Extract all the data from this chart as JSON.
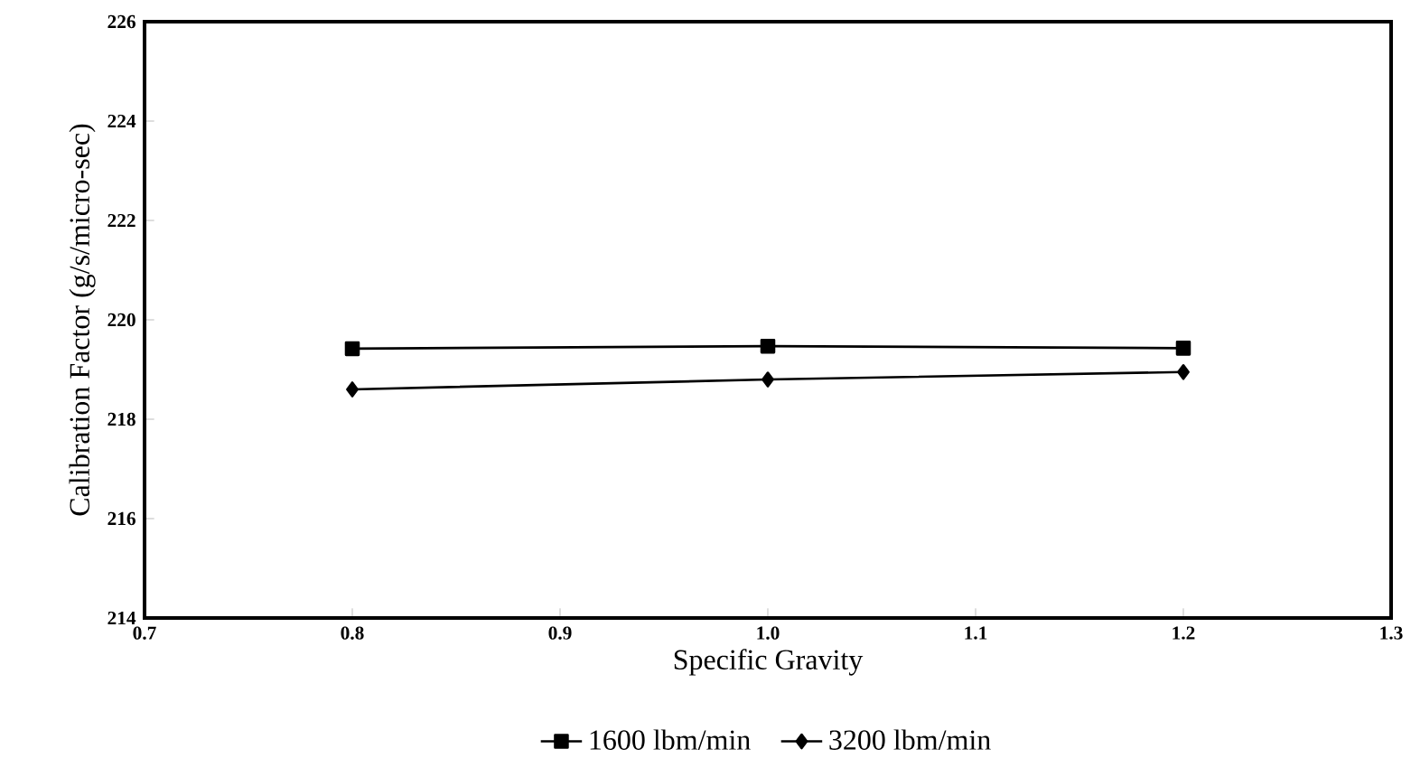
{
  "chart_data": {
    "type": "line",
    "xlabel": "Specific Gravity",
    "ylabel": "Calibration Factor (g/s/micro-sec)",
    "xlim": [
      0.7,
      1.3
    ],
    "ylim": [
      214,
      226
    ],
    "xticks": [
      {
        "value": 0.7,
        "label": "0.7"
      },
      {
        "value": 0.8,
        "label": "0.8"
      },
      {
        "value": 0.9,
        "label": "0.9"
      },
      {
        "value": 1.0,
        "label": "1.0"
      },
      {
        "value": 1.1,
        "label": "1.1"
      },
      {
        "value": 1.2,
        "label": "1.2"
      },
      {
        "value": 1.3,
        "label": "1.3"
      }
    ],
    "yticks": [
      214,
      216,
      218,
      220,
      222,
      224,
      226
    ],
    "x": [
      0.8,
      1.0,
      1.2
    ],
    "series": [
      {
        "name": "1600 lbm/min",
        "color": "#000000",
        "marker": "square",
        "values": [
          219.42,
          219.47,
          219.43
        ]
      },
      {
        "name": "3200 lbm/min",
        "color": "#000000",
        "marker": "diamond",
        "values": [
          218.6,
          218.8,
          218.95
        ]
      }
    ],
    "legend": "bottom",
    "grid": false,
    "line_style": "solid"
  }
}
